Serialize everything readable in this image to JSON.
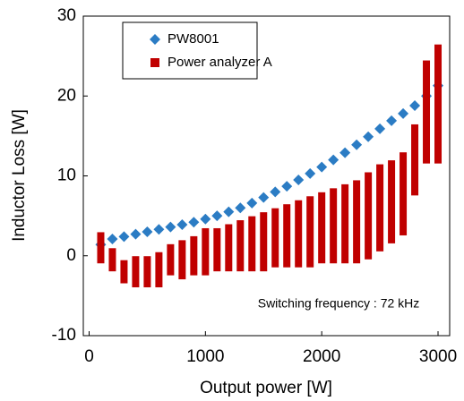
{
  "chart_data": {
    "type": "scatter",
    "xlabel": "Output power [W]",
    "ylabel": "Inductor Loss [W]",
    "annotation": "Switching frequency : 72 kHz",
    "xlim": [
      -50,
      3100
    ],
    "ylim": [
      -10,
      30
    ],
    "xticks": [
      0,
      1000,
      2000,
      3000
    ],
    "yticks": [
      -10,
      0,
      10,
      20,
      30
    ],
    "series": [
      {
        "name": "PW8001",
        "color": "#2b7cc4",
        "marker": "diamond",
        "x": [
          100,
          200,
          300,
          400,
          500,
          600,
          700,
          800,
          900,
          1000,
          1100,
          1200,
          1300,
          1400,
          1500,
          1600,
          1700,
          1800,
          1900,
          2000,
          2100,
          2200,
          2300,
          2400,
          2500,
          2600,
          2700,
          2800,
          2900,
          3000
        ],
        "values": [
          1.4,
          2.1,
          2.4,
          2.7,
          3.0,
          3.3,
          3.6,
          3.9,
          4.2,
          4.6,
          5.0,
          5.5,
          6.0,
          6.6,
          7.3,
          8.0,
          8.7,
          9.5,
          10.3,
          11.1,
          12.0,
          12.9,
          13.9,
          14.9,
          15.9,
          16.9,
          17.8,
          18.8,
          20.0,
          21.3
        ]
      },
      {
        "name": "Power analyzer A",
        "color": "#c00000",
        "marker": "square",
        "x": [
          100,
          200,
          300,
          400,
          500,
          600,
          700,
          800,
          900,
          1000,
          1100,
          1200,
          1300,
          1400,
          1500,
          1600,
          1700,
          1800,
          1900,
          2000,
          2100,
          2200,
          2300,
          2400,
          2500,
          2600,
          2700,
          2800,
          2900,
          3000
        ],
        "low": [
          -0.5,
          -1.5,
          -3,
          -3.5,
          -3.5,
          -3.5,
          -2,
          -2.5,
          -2,
          -2,
          -1.5,
          -1.5,
          -1.5,
          -1.5,
          -1.5,
          -1,
          -1,
          -1,
          -1,
          -0.5,
          -0.5,
          -0.5,
          -0.5,
          0,
          1,
          2,
          3,
          8,
          12,
          12
        ],
        "high": [
          2.5,
          0.5,
          -1,
          -0.5,
          -0.5,
          0,
          1,
          1.5,
          2,
          3,
          3,
          3.5,
          4,
          4.5,
          5,
          5.5,
          6,
          6.5,
          7,
          7.5,
          8,
          8.5,
          9,
          10,
          11,
          11.5,
          12.5,
          16,
          24,
          26
        ]
      }
    ]
  }
}
